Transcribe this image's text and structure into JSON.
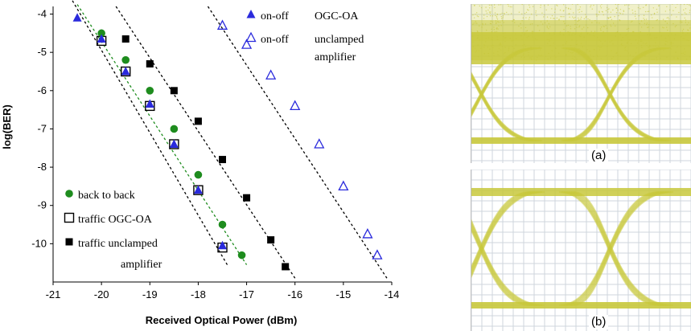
{
  "chart_data": {
    "type": "scatter",
    "title": "",
    "xlabel": "Received Optical Power (dBm)",
    "ylabel": "log(BER)",
    "xlim": [
      -21,
      -14
    ],
    "ylim": [
      -11,
      -3.8
    ],
    "x_ticks": [
      "-21",
      "-20",
      "-19",
      "-18",
      "-17",
      "-16",
      "-15",
      "-14"
    ],
    "y_ticks": [
      "-4",
      "-5",
      "-6",
      "-7",
      "-8",
      "-9",
      "-10"
    ],
    "grid": false,
    "series": [
      {
        "name": "back to back",
        "marker": "filled-circle",
        "color": "#1e8c1e",
        "x": [
          -20.0,
          -19.5,
          -19.0,
          -18.5,
          -18.0,
          -17.5,
          -17.1
        ],
        "y": [
          -4.5,
          -5.2,
          -6.0,
          -7.0,
          -8.2,
          -9.5,
          -10.3
        ]
      },
      {
        "name": "traffic OGC-OA",
        "marker": "open-square",
        "color": "#000000",
        "x": [
          -20.0,
          -19.5,
          -19.0,
          -18.5,
          -18.0,
          -17.5
        ],
        "y": [
          -4.7,
          -5.5,
          -6.4,
          -7.4,
          -8.6,
          -10.1
        ]
      },
      {
        "name": "traffic unclamped amplifier",
        "marker": "filled-square",
        "color": "#000000",
        "x": [
          -19.5,
          -19.0,
          -18.5,
          -18.0,
          -17.5,
          -17.0,
          -16.5,
          -16.2
        ],
        "y": [
          -4.65,
          -5.3,
          -6.0,
          -6.8,
          -7.8,
          -8.8,
          -9.9,
          -10.6
        ]
      },
      {
        "name": "on-off OGC-OA",
        "marker": "filled-triangle",
        "color": "#2a2adc",
        "x": [
          -20.5,
          -20.0,
          -19.5,
          -19.0,
          -18.5,
          -18.0,
          -17.5
        ],
        "y": [
          -4.1,
          -4.65,
          -5.5,
          -6.35,
          -7.4,
          -8.6,
          -10.05
        ]
      },
      {
        "name": "on-off unclamped amplifier",
        "marker": "open-triangle",
        "color": "#2a2adc",
        "x": [
          -17.5,
          -17.0,
          -16.5,
          -16.0,
          -15.5,
          -15.0,
          -14.5,
          -14.3
        ],
        "y": [
          -4.3,
          -4.8,
          -5.6,
          -6.4,
          -7.4,
          -8.5,
          -9.75,
          -10.3
        ]
      }
    ],
    "fit_lines": [
      {
        "style": "green-dashed",
        "color": "#1e8c1e",
        "x": [
          -20.5,
          -17.0
        ],
        "y": [
          -3.75,
          -10.55
        ]
      },
      {
        "style": "black-dashed",
        "color": "#000000",
        "x": [
          -20.6,
          -17.4
        ],
        "y": [
          -3.65,
          -10.55
        ]
      },
      {
        "style": "black-dashed",
        "color": "#000000",
        "x": [
          -19.7,
          -16.0
        ],
        "y": [
          -3.8,
          -10.9
        ]
      },
      {
        "style": "black-dashed",
        "color": "#000000",
        "x": [
          -17.8,
          -14.1
        ],
        "y": [
          -3.8,
          -10.9
        ]
      }
    ],
    "legend": [
      {
        "label": "on-off",
        "label2": "OGC-OA",
        "marker": "filled-triangle",
        "color": "#2a2adc"
      },
      {
        "label": "on-off",
        "label2": "unclamped",
        "label3": "amplifier",
        "marker": "open-triangle",
        "color": "#2a2adc"
      },
      {
        "label": "back to back",
        "marker": "filled-circle",
        "color": "#1e8c1e"
      },
      {
        "label": "traffic OGC-OA",
        "marker": "open-square",
        "color": "#000000"
      },
      {
        "label": "traffic unclamped",
        "label2": "amplifier",
        "marker": "filled-square",
        "color": "#000000"
      }
    ]
  },
  "eye_diagrams": {
    "trace_color": "#c8c83c",
    "panels": [
      {
        "label": "(a)",
        "eye": "closed"
      },
      {
        "label": "(b)",
        "eye": "open"
      }
    ]
  }
}
